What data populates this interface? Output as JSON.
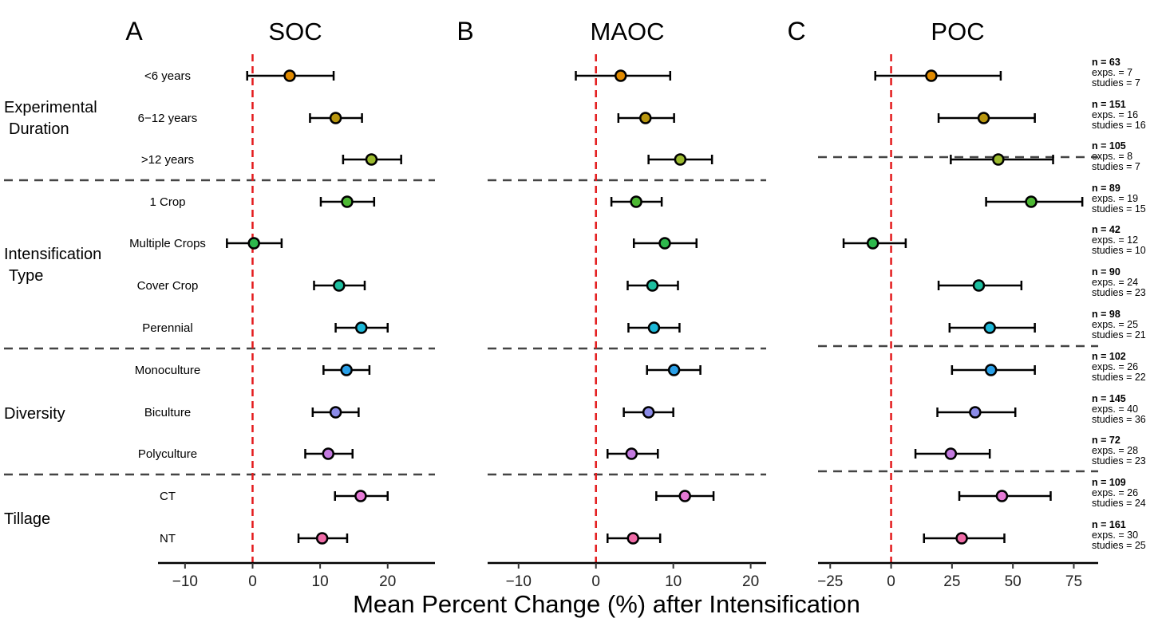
{
  "xlabel": "Mean Percent Change (%) after Intensification",
  "groups": [
    {
      "label": "Experimental\nDuration"
    },
    {
      "label": "Intensification\nType"
    },
    {
      "label": "Diversity"
    },
    {
      "label": "Tillage"
    }
  ],
  "categories": [
    "<6 years",
    "6−12 years",
    ">12 years",
    "1 Crop",
    "Multiple Crops",
    "Cover Crop",
    "Perennial",
    "Monoculture",
    "Biculture",
    "Polyculture",
    "CT",
    "NT"
  ],
  "colors": [
    "#E08A00",
    "#B8960E",
    "#9BBA2E",
    "#4DB833",
    "#2DB84C",
    "#1DBFA0",
    "#1CB8D8",
    "#2AA0E8",
    "#8B8BE8",
    "#C47AE0",
    "#E67AD6",
    "#F06CA8"
  ],
  "annotations": [
    {
      "n": "n = 63",
      "exps": "exps. = 7",
      "studies": "studies = 7"
    },
    {
      "n": "n = 151",
      "exps": "exps. = 16",
      "studies": "studies = 16"
    },
    {
      "n": "n = 105",
      "exps": "exps. = 8",
      "studies": "studies = 7"
    },
    {
      "n": "n = 89",
      "exps": "exps. = 19",
      "studies": "studies = 15"
    },
    {
      "n": "n = 42",
      "exps": "exps. = 12",
      "studies": "studies = 10"
    },
    {
      "n": "n = 90",
      "exps": "exps. = 24",
      "studies": "studies = 23"
    },
    {
      "n": "n = 98",
      "exps": "exps. = 25",
      "studies": "studies = 21"
    },
    {
      "n": "n = 102",
      "exps": "exps. = 26",
      "studies": "studies = 22"
    },
    {
      "n": "n = 145",
      "exps": "exps. = 40",
      "studies": "studies = 36"
    },
    {
      "n": "n = 72",
      "exps": "exps. = 28",
      "studies": "studies = 23"
    },
    {
      "n": "n = 109",
      "exps": "exps. = 26",
      "studies": "studies = 24"
    },
    {
      "n": "n = 161",
      "exps": "exps. = 30",
      "studies": "studies = 25"
    }
  ],
  "chart_data": [
    {
      "type": "scatter",
      "letter": "A",
      "title": "SOC",
      "xlim": [
        -14,
        27
      ],
      "ticks": [
        -10,
        0,
        10,
        20
      ],
      "tick_labels": [
        "−10",
        "0",
        "10",
        "20"
      ],
      "reference_line": 0,
      "categories": [
        "<6 years",
        "6−12 years",
        ">12 years",
        "1 Crop",
        "Multiple Crops",
        "Cover Crop",
        "Perennial",
        "Monoculture",
        "Biculture",
        "Polyculture",
        "CT",
        "NT"
      ],
      "mean": [
        5.5,
        12.3,
        17.6,
        14.0,
        0.2,
        12.8,
        16.1,
        13.9,
        12.3,
        11.2,
        16.0,
        10.3
      ],
      "lower": [
        -0.8,
        8.5,
        13.4,
        10.1,
        -3.8,
        9.1,
        12.3,
        10.5,
        8.9,
        7.8,
        12.2,
        6.8
      ],
      "upper": [
        12.0,
        16.2,
        22.0,
        18.0,
        4.3,
        16.6,
        20.0,
        17.3,
        15.7,
        14.8,
        20.0,
        14.0
      ]
    },
    {
      "type": "scatter",
      "letter": "B",
      "title": "MAOC",
      "xlim": [
        -14,
        22
      ],
      "ticks": [
        -10,
        0,
        10,
        20
      ],
      "tick_labels": [
        "−10",
        "0",
        "10",
        "20"
      ],
      "reference_line": 0,
      "categories": [
        "<6 years",
        "6−12 years",
        ">12 years",
        "1 Crop",
        "Multiple Crops",
        "Cover Crop",
        "Perennial",
        "Monoculture",
        "Biculture",
        "Polyculture",
        "CT",
        "NT"
      ],
      "mean": [
        3.2,
        6.4,
        10.9,
        5.2,
        8.9,
        7.3,
        7.5,
        10.1,
        6.8,
        4.6,
        11.5,
        4.8
      ],
      "lower": [
        -2.6,
        2.9,
        6.8,
        2.0,
        4.9,
        4.1,
        4.2,
        6.6,
        3.6,
        1.5,
        7.8,
        1.5
      ],
      "upper": [
        9.6,
        10.1,
        15.0,
        8.5,
        13.0,
        10.6,
        10.8,
        13.5,
        10.0,
        8.0,
        15.2,
        8.3
      ]
    },
    {
      "type": "scatter",
      "letter": "C",
      "title": "POC",
      "xlim": [
        -30,
        85
      ],
      "ticks": [
        -25,
        0,
        25,
        50,
        75
      ],
      "tick_labels": [
        "−25",
        "0",
        "25",
        "50",
        "75"
      ],
      "reference_line": 0,
      "categories": [
        "<6 years",
        "6−12 years",
        ">12 years",
        "1 Crop",
        "Multiple Crops",
        "Cover Crop",
        "Perennial",
        "Monoculture",
        "Biculture",
        "Polyculture",
        "CT",
        "NT"
      ],
      "mean": [
        16.5,
        38.0,
        44.0,
        57.5,
        -7.5,
        36.0,
        40.5,
        41.0,
        34.5,
        24.5,
        45.5,
        29.0
      ],
      "lower": [
        -6.5,
        19.5,
        24.5,
        39.0,
        -19.5,
        19.5,
        24.0,
        25.0,
        19.0,
        10.0,
        28.0,
        13.5
      ],
      "upper": [
        45.0,
        59.0,
        66.5,
        78.5,
        6.0,
        53.5,
        59.0,
        59.0,
        51.0,
        40.5,
        65.5,
        46.5
      ]
    }
  ]
}
